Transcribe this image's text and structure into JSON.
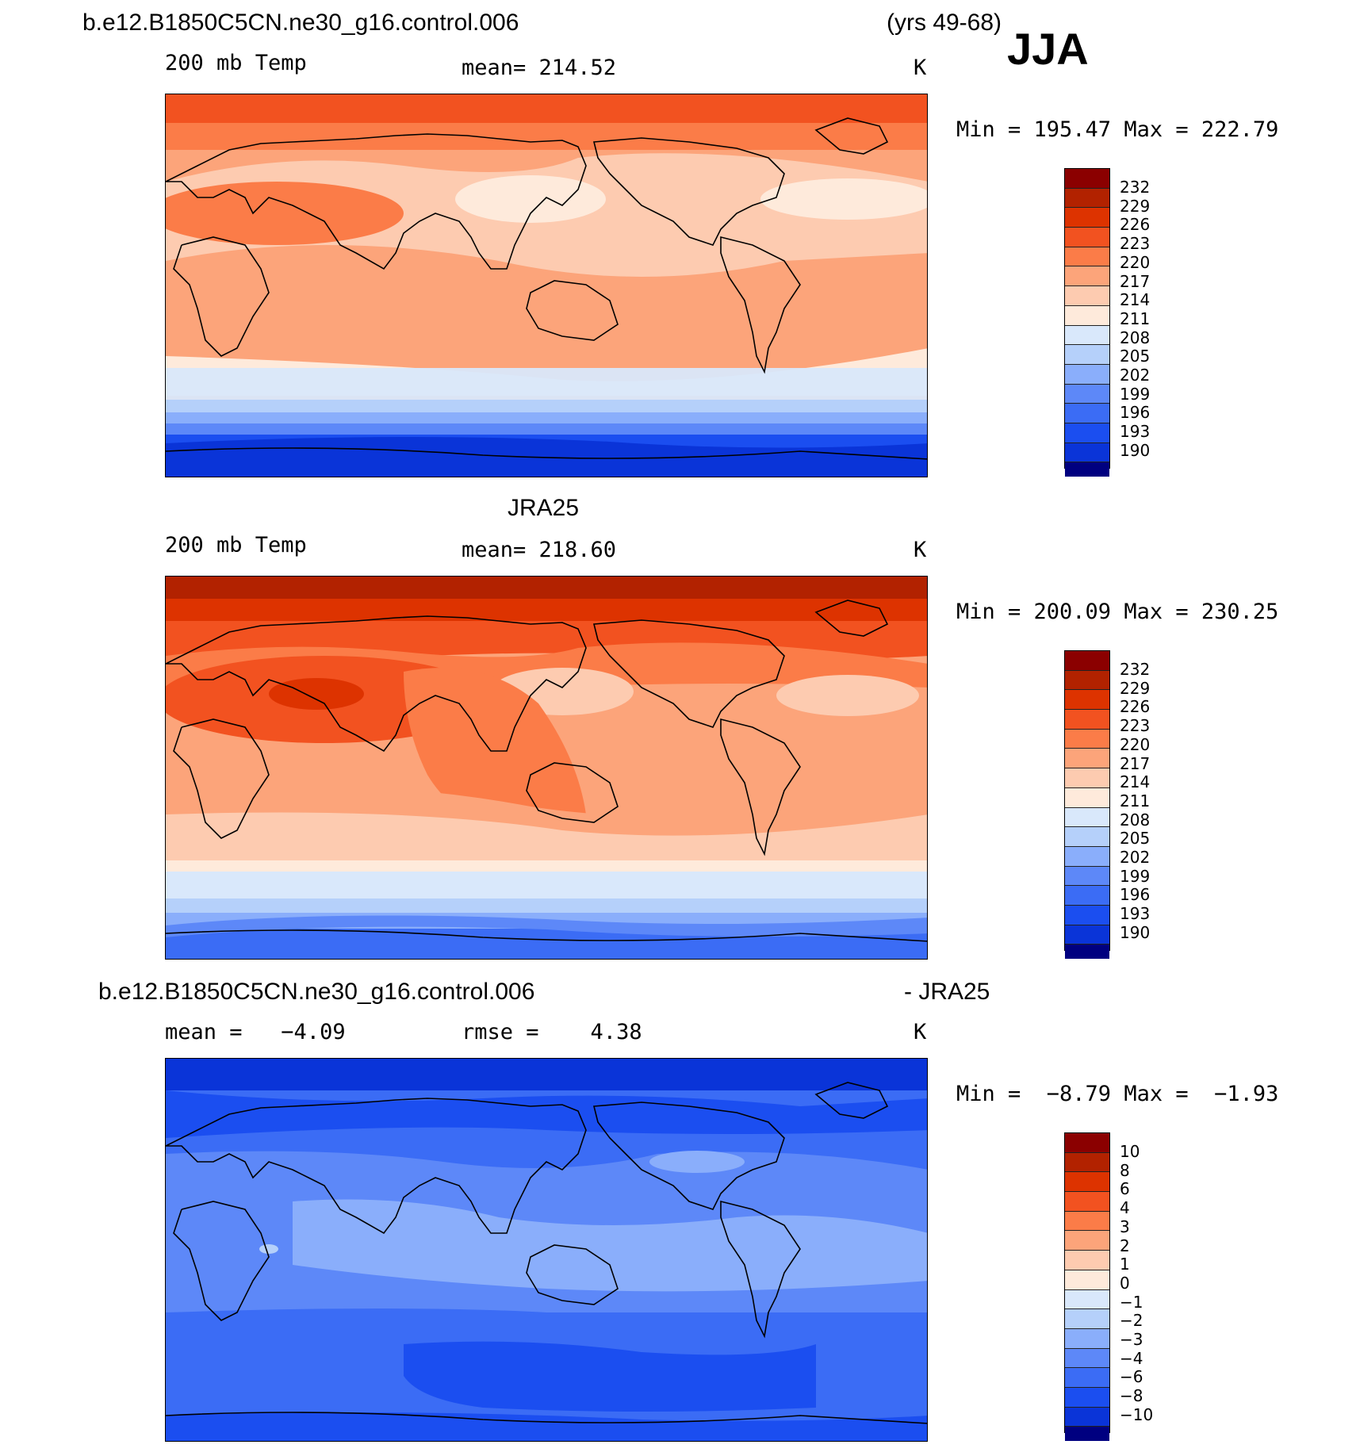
{
  "header": {
    "case_name": "b.e12.B1850C5CN.ne30_g16.control.006",
    "years": "(yrs 49-68)",
    "season": "JJA"
  },
  "panels": [
    {
      "id": "model",
      "dataset_title": "",
      "variable": "200 mb Temp",
      "stat_text": "mean= 214.52",
      "units": "K",
      "minmax": "Min = 195.47 Max = 222.79",
      "colorbar_levels": [
        "232",
        "229",
        "226",
        "223",
        "220",
        "217",
        "214",
        "211",
        "208",
        "205",
        "202",
        "199",
        "196",
        "193",
        "190"
      ]
    },
    {
      "id": "obs",
      "dataset_title": "JRA25",
      "variable": "200 mb Temp",
      "stat_text": "mean= 218.60",
      "units": "K",
      "minmax": "Min = 200.09 Max = 230.25",
      "colorbar_levels": [
        "232",
        "229",
        "226",
        "223",
        "220",
        "217",
        "214",
        "211",
        "208",
        "205",
        "202",
        "199",
        "196",
        "193",
        "190"
      ]
    },
    {
      "id": "diff",
      "dataset_title": "b.e12.B1850C5CN.ne30_g16.control.006",
      "dataset_suffix": "- JRA25",
      "stat_text": "mean =   −4.09",
      "rmse_text": "rmse =    4.38",
      "units": "K",
      "minmax": "Min =  −8.79 Max =  −1.93",
      "colorbar_levels": [
        "10",
        "8",
        "6",
        "4",
        "3",
        "2",
        "1",
        "0",
        "−1",
        "−2",
        "−3",
        "−4",
        "−6",
        "−8",
        "−10"
      ]
    }
  ],
  "colors": {
    "colorbar_ramp": [
      "#8b0000",
      "#b22200",
      "#dd3300",
      "#f25220",
      "#fb7c48",
      "#fca47a",
      "#fdcbb0",
      "#feeadb",
      "#d9e8fb",
      "#b5d0fa",
      "#8aaefb",
      "#5d88f8",
      "#3b6cf5",
      "#1b4ef0",
      "#0a34d8",
      "#022090",
      "#000080"
    ]
  }
}
